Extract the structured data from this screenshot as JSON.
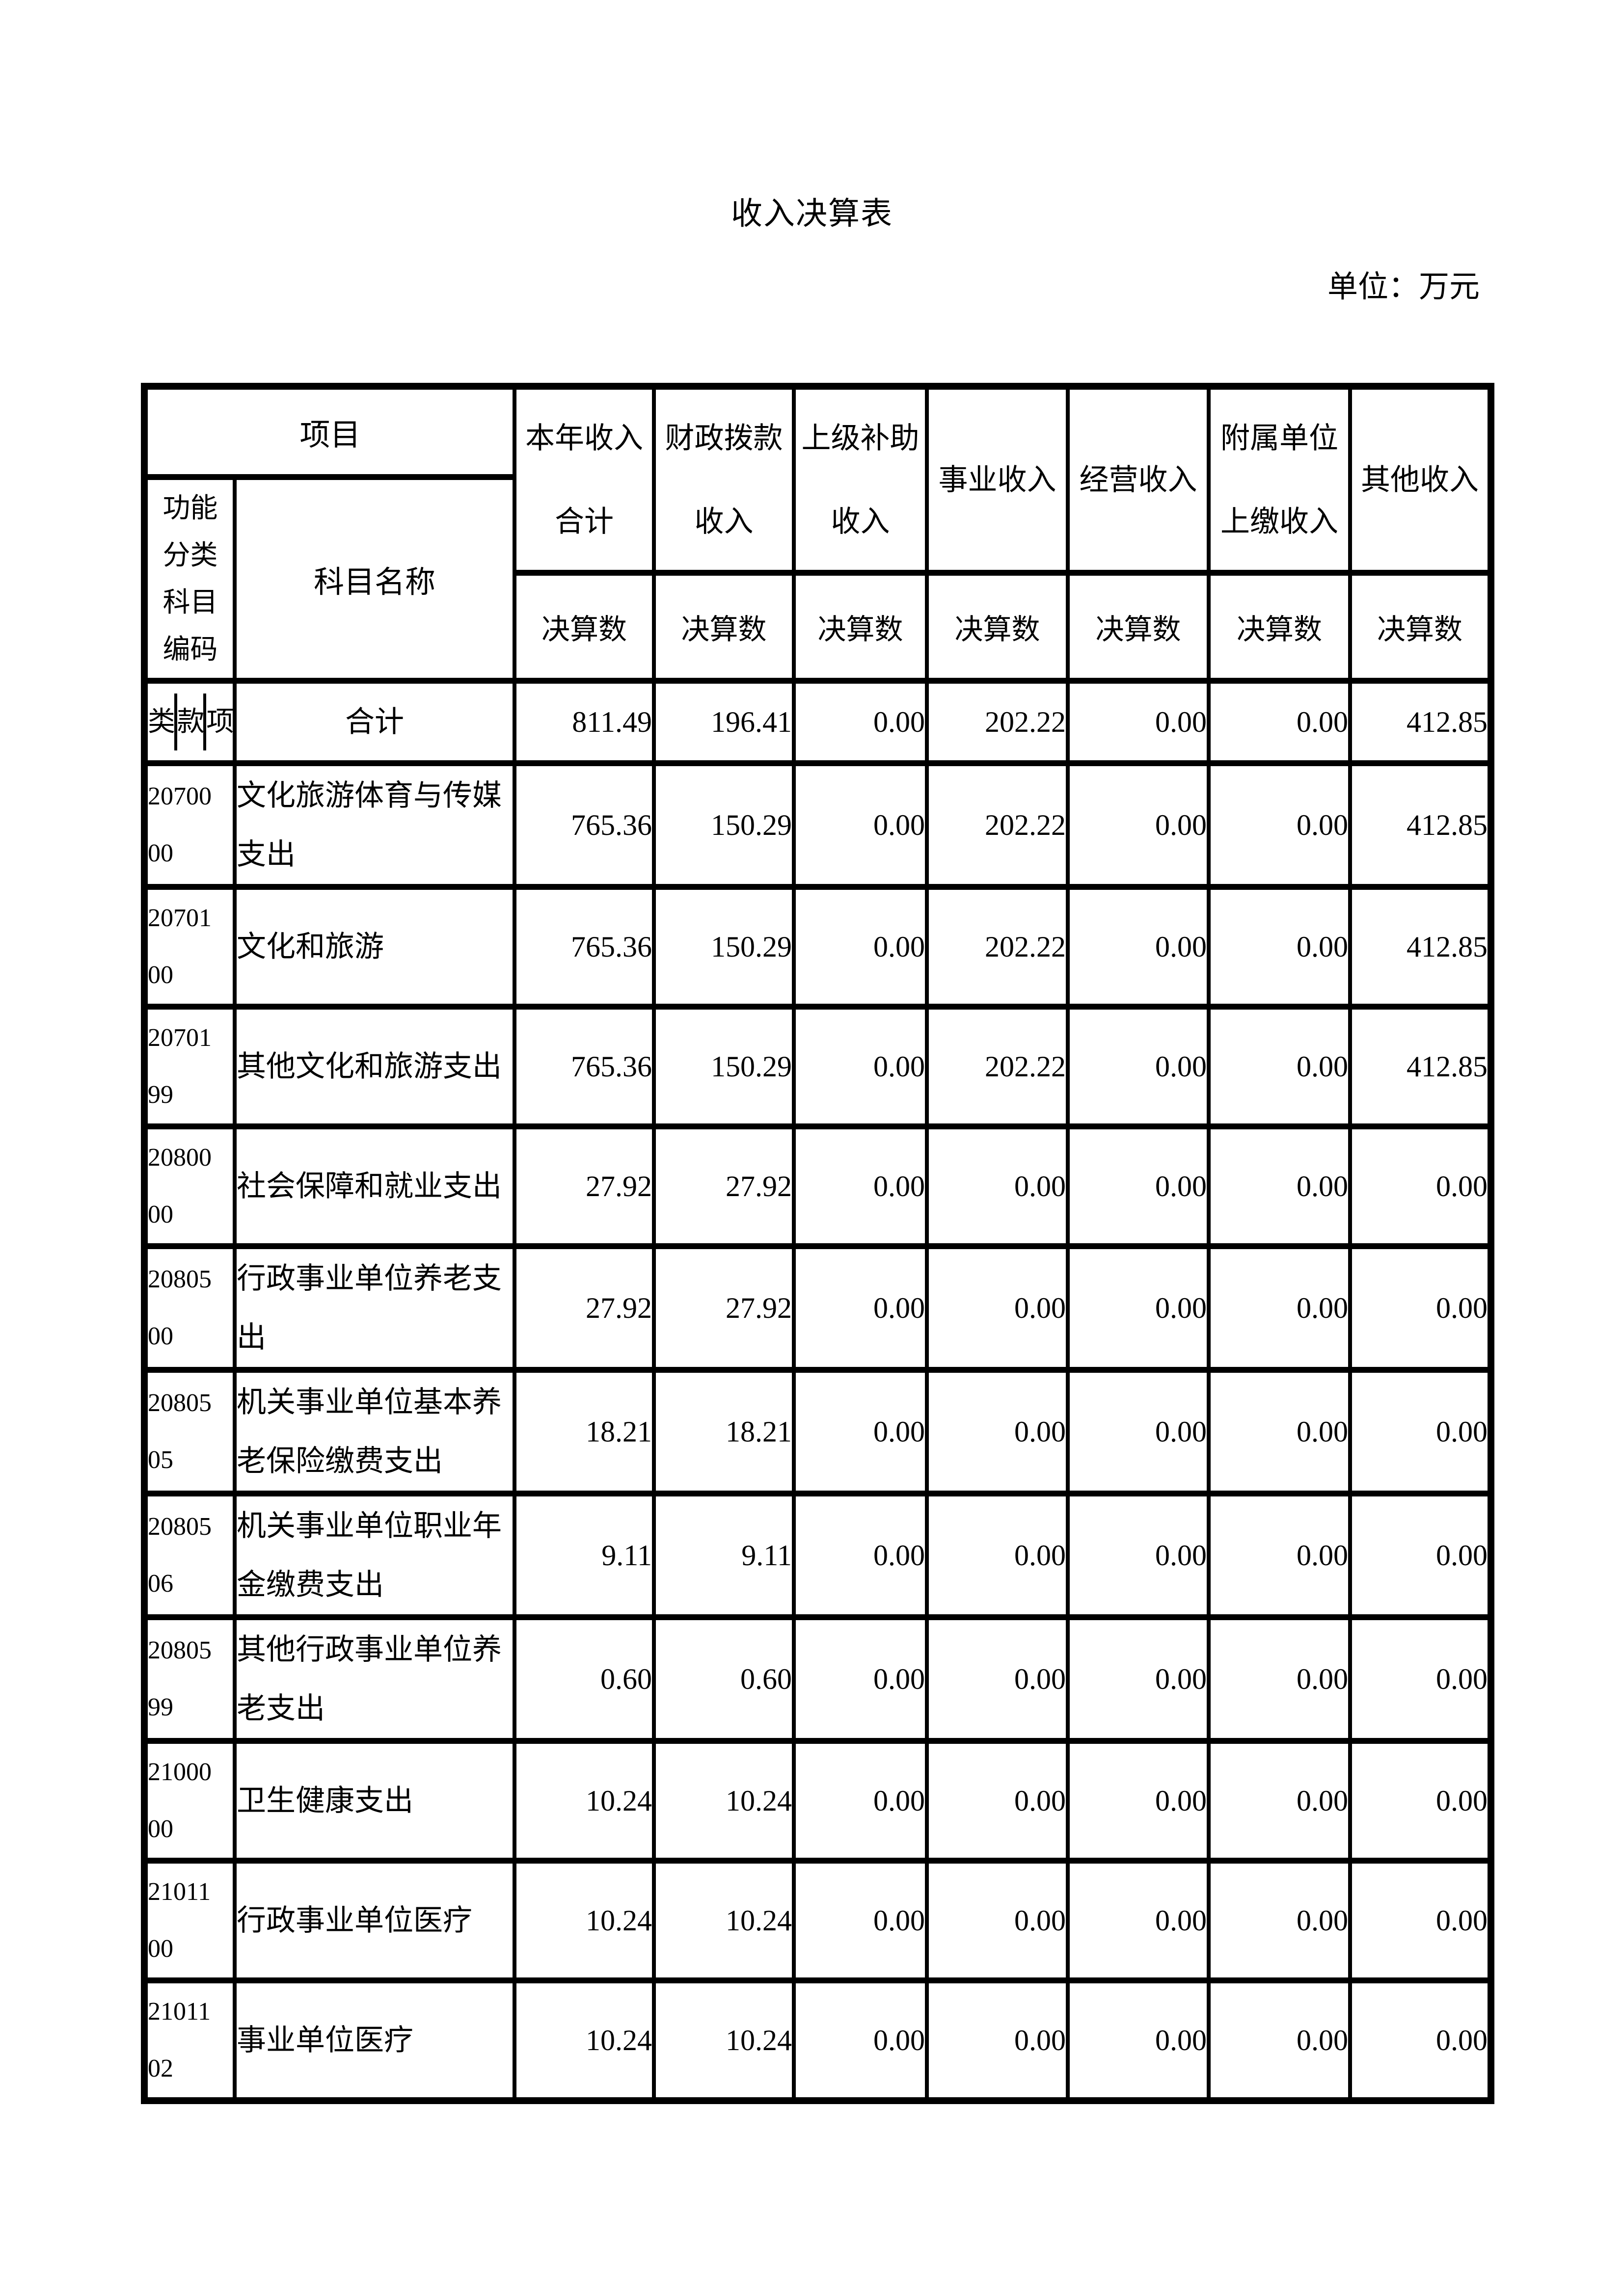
{
  "page": {
    "title": "收入决算表",
    "unit_label": "单位：万元"
  },
  "table": {
    "header": {
      "project": "项目",
      "code_header": "功能\n分类\n科目\n编码",
      "subject_header": "科目名称",
      "settlement_label": "决算数",
      "columns": [
        "本年收入\n合计",
        "财政拨款\n收入",
        "上级补助\n收入",
        "事业收入",
        "经营收入",
        "附属单位\n上缴收入",
        "其他收入"
      ]
    },
    "rows": [
      {
        "type": "total",
        "code_parts": [
          "类",
          "款",
          "项"
        ],
        "name": "合计",
        "values": [
          "811.49",
          "196.41",
          "0.00",
          "202.22",
          "0.00",
          "0.00",
          "412.85"
        ]
      },
      {
        "type": "data",
        "code": "20700\n00",
        "name": "文化旅游体育与传媒\n支出",
        "values": [
          "765.36",
          "150.29",
          "0.00",
          "202.22",
          "0.00",
          "0.00",
          "412.85"
        ]
      },
      {
        "type": "data",
        "code": "20701\n00",
        "name": "文化和旅游",
        "values": [
          "765.36",
          "150.29",
          "0.00",
          "202.22",
          "0.00",
          "0.00",
          "412.85"
        ]
      },
      {
        "type": "data",
        "code": "20701\n99",
        "name": "其他文化和旅游支出",
        "values": [
          "765.36",
          "150.29",
          "0.00",
          "202.22",
          "0.00",
          "0.00",
          "412.85"
        ]
      },
      {
        "type": "data",
        "code": "20800\n00",
        "name": "社会保障和就业支出",
        "values": [
          "27.92",
          "27.92",
          "0.00",
          "0.00",
          "0.00",
          "0.00",
          "0.00"
        ]
      },
      {
        "type": "data",
        "code": "20805\n00",
        "name": "行政事业单位养老支\n出",
        "values": [
          "27.92",
          "27.92",
          "0.00",
          "0.00",
          "0.00",
          "0.00",
          "0.00"
        ]
      },
      {
        "type": "data",
        "code": "20805\n05",
        "name": "机关事业单位基本养\n老保险缴费支出",
        "values": [
          "18.21",
          "18.21",
          "0.00",
          "0.00",
          "0.00",
          "0.00",
          "0.00"
        ]
      },
      {
        "type": "data",
        "code": "20805\n06",
        "name": "机关事业单位职业年\n金缴费支出",
        "values": [
          "9.11",
          "9.11",
          "0.00",
          "0.00",
          "0.00",
          "0.00",
          "0.00"
        ]
      },
      {
        "type": "data",
        "code": "20805\n99",
        "name": "其他行政事业单位养\n老支出",
        "values": [
          "0.60",
          "0.60",
          "0.00",
          "0.00",
          "0.00",
          "0.00",
          "0.00"
        ]
      },
      {
        "type": "data",
        "code": "21000\n00",
        "name": "卫生健康支出",
        "values": [
          "10.24",
          "10.24",
          "0.00",
          "0.00",
          "0.00",
          "0.00",
          "0.00"
        ]
      },
      {
        "type": "data",
        "code": "21011\n00",
        "name": "行政事业单位医疗",
        "values": [
          "10.24",
          "10.24",
          "0.00",
          "0.00",
          "0.00",
          "0.00",
          "0.00"
        ]
      },
      {
        "type": "data",
        "code": "21011\n02",
        "name": "事业单位医疗",
        "values": [
          "10.24",
          "10.24",
          "0.00",
          "0.00",
          "0.00",
          "0.00",
          "0.00"
        ]
      }
    ]
  }
}
